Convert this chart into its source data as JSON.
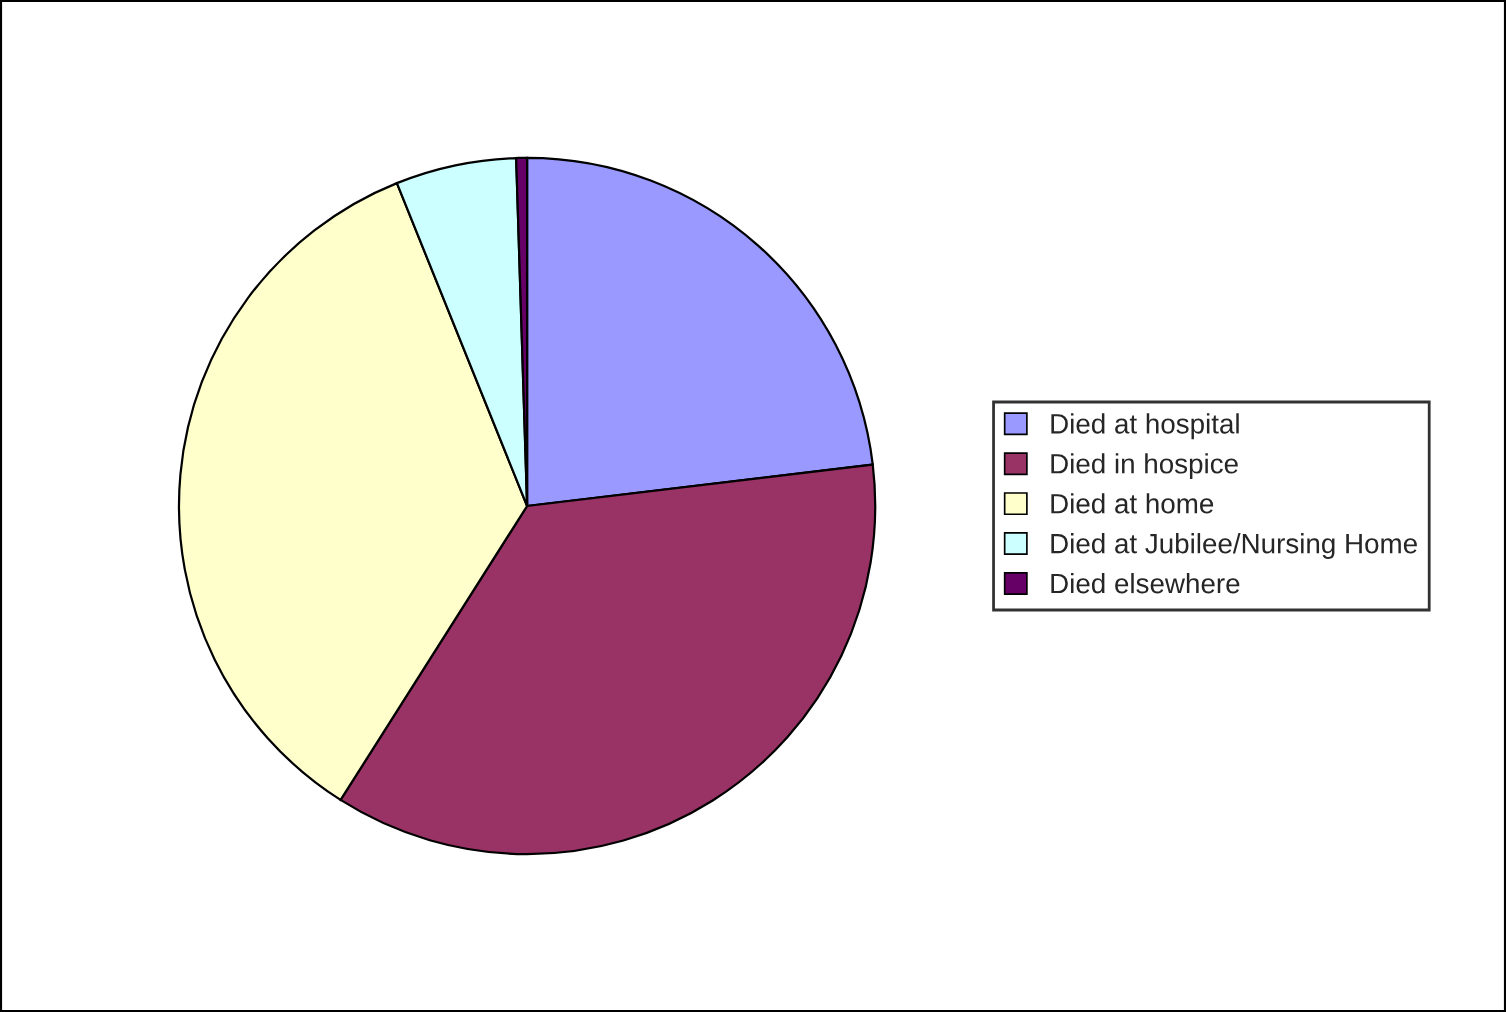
{
  "chart_data": {
    "type": "pie",
    "categories": [
      "Died at hospital",
      "Died in hospice",
      "Died at home",
      "Died at Jubilee/Nursing Home",
      "Died elsewhere"
    ],
    "values": [
      23.1,
      35.9,
      34.9,
      5.6,
      0.5
    ],
    "colors": [
      "#9999ff",
      "#993366",
      "#ffffcc",
      "#ccffff",
      "#660066"
    ],
    "legend": "right"
  }
}
